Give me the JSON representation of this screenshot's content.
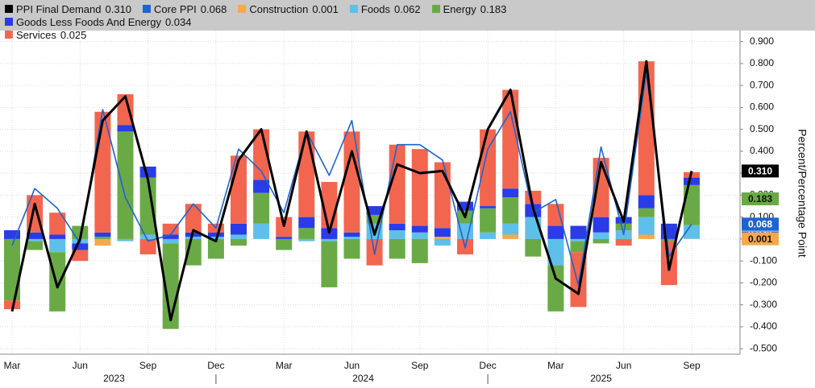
{
  "chart_data": {
    "type": "bar",
    "stacked": true,
    "categories": [
      "Mar",
      null,
      null,
      "Jun",
      null,
      null,
      "Sep",
      null,
      null,
      "Dec",
      null,
      null,
      "Mar",
      null,
      null,
      "Jun",
      null,
      null,
      "Sep",
      null,
      null,
      "Dec",
      null,
      null,
      "Mar",
      null,
      null,
      "Jun",
      null,
      null,
      "Sep"
    ],
    "year_groups": [
      {
        "label": "2023",
        "first": 0,
        "last": 9
      },
      {
        "label": "2024",
        "first": 10,
        "last": 21
      },
      {
        "label": "2025",
        "first": 22,
        "last": 30
      }
    ],
    "y_label": "Percent/Percentage Point",
    "ylim": [
      -0.525,
      0.95
    ],
    "yticks": [
      {
        "value": 0.9,
        "label": "0.900"
      },
      {
        "value": 0.8,
        "label": "0.800"
      },
      {
        "value": 0.7,
        "label": "0.700"
      },
      {
        "value": 0.6,
        "label": "0.600"
      },
      {
        "value": 0.5,
        "label": "0.500"
      },
      {
        "value": 0.4,
        "label": "0.400"
      },
      {
        "value": 0.3,
        "label": "0.300"
      },
      {
        "value": 0.2,
        "label": "0.200"
      },
      {
        "value": 0.1,
        "label": "0.100"
      },
      {
        "value": 0,
        "label": "0.000"
      },
      {
        "value": -0.1,
        "label": "-0.100"
      },
      {
        "value": -0.2,
        "label": "-0.200"
      },
      {
        "value": -0.3,
        "label": "-0.300"
      },
      {
        "value": -0.4,
        "label": "-0.400"
      },
      {
        "value": -0.5,
        "label": "-0.500"
      }
    ],
    "grid": true,
    "series": [
      {
        "name": "PPI Final Demand",
        "type": "line",
        "color": "#000000",
        "values": [
          -0.33,
          0.16,
          -0.22,
          0.0,
          0.54,
          0.65,
          0.27,
          -0.37,
          0.04,
          -0.01,
          0.36,
          0.5,
          0.06,
          0.49,
          0.03,
          0.4,
          0.02,
          0.34,
          0.3,
          0.31,
          0.1,
          0.5,
          0.68,
          0.14,
          -0.18,
          -0.25,
          0.35,
          0.08,
          0.81,
          -0.14,
          0.31
        ],
        "value_labels": [
          null,
          null,
          null,
          null,
          null,
          null,
          null,
          null,
          null,
          null,
          null,
          null,
          null,
          null,
          null,
          null,
          null,
          null,
          null,
          null,
          null,
          null,
          null,
          null,
          null,
          null,
          null,
          null,
          null,
          null,
          "0.310"
        ]
      },
      {
        "name": "Core PPI",
        "type": "line",
        "color": "#1f63d0",
        "values": [
          -0.03,
          0.23,
          0.14,
          -0.02,
          0.59,
          0.19,
          -0.01,
          0.02,
          0.16,
          0.05,
          0.41,
          0.31,
          0.12,
          0.49,
          0.29,
          0.54,
          -0.07,
          0.43,
          0.43,
          0.36,
          -0.04,
          0.41,
          0.58,
          0.12,
          0.18,
          -0.21,
          0.42,
          0.02,
          0.76,
          -0.08,
          0.068
        ],
        "value_labels": [
          null,
          null,
          null,
          null,
          null,
          null,
          null,
          null,
          null,
          null,
          null,
          null,
          null,
          null,
          null,
          null,
          null,
          null,
          null,
          null,
          null,
          null,
          null,
          null,
          null,
          null,
          null,
          null,
          null,
          null,
          "0.068"
        ]
      },
      {
        "name": "Construction",
        "type": "bar",
        "color": "#f5a94a",
        "values": [
          0,
          0,
          0,
          0,
          -0.03,
          0,
          0,
          0,
          0,
          0,
          0,
          0,
          0,
          0,
          0,
          0,
          0,
          0,
          0,
          0.01,
          0,
          0,
          0.02,
          0,
          0,
          0,
          0,
          0,
          0.02,
          0,
          0.001
        ],
        "value_labels": [
          null,
          null,
          null,
          null,
          null,
          null,
          null,
          null,
          null,
          null,
          null,
          null,
          null,
          null,
          null,
          null,
          null,
          null,
          null,
          null,
          null,
          null,
          null,
          null,
          null,
          null,
          null,
          null,
          null,
          null,
          "0.001"
        ]
      },
      {
        "name": "Foods",
        "type": "bar",
        "color": "#5ec0ea",
        "values": [
          0,
          -0.01,
          -0.06,
          -0.02,
          0,
          -0.01,
          0.02,
          -0.02,
          0.01,
          0.01,
          0.02,
          0.07,
          0,
          -0.01,
          -0.01,
          0.01,
          0.07,
          0.04,
          0.03,
          -0.03,
          0.07,
          0.03,
          0.05,
          0.1,
          -0.12,
          -0.01,
          0.03,
          0.04,
          0.08,
          0,
          0.062
        ],
        "value_labels": [
          null,
          null,
          null,
          null,
          null,
          null,
          null,
          null,
          null,
          null,
          null,
          null,
          null,
          null,
          null,
          null,
          null,
          null,
          null,
          null,
          null,
          null,
          null,
          null,
          null,
          null,
          null,
          null,
          null,
          null,
          "0.062"
        ]
      },
      {
        "name": "Energy",
        "type": "bar",
        "color": "#6aaa46",
        "values": [
          -0.28,
          -0.04,
          -0.27,
          0.06,
          0.01,
          0.49,
          0.26,
          -0.39,
          -0.12,
          -0.09,
          -0.03,
          0.14,
          -0.05,
          0.05,
          -0.21,
          -0.09,
          0.04,
          -0.09,
          -0.11,
          0,
          0.06,
          0.11,
          0.12,
          -0.08,
          -0.21,
          -0.05,
          -0.02,
          0.03,
          0.04,
          -0.01,
          0.183
        ],
        "value_labels": [
          null,
          null,
          null,
          null,
          null,
          null,
          null,
          null,
          null,
          null,
          null,
          null,
          null,
          null,
          null,
          null,
          null,
          null,
          null,
          null,
          null,
          null,
          null,
          null,
          null,
          null,
          null,
          null,
          null,
          null,
          "0.183"
        ]
      },
      {
        "name": "Goods Less Foods And Energy",
        "type": "bar",
        "color": "#2a3be8",
        "values": [
          0.04,
          0.03,
          0.02,
          -0.03,
          0.02,
          0.03,
          0.05,
          0.02,
          0.02,
          0.02,
          0.05,
          0.06,
          0.01,
          0.05,
          0.05,
          0.02,
          0.04,
          0.03,
          0.03,
          0.04,
          0.04,
          0.01,
          0.04,
          0.06,
          0.06,
          0.06,
          0.07,
          0.03,
          0.06,
          0.07,
          0.034
        ],
        "value_labels": [
          null,
          null,
          null,
          null,
          null,
          null,
          null,
          null,
          null,
          null,
          null,
          null,
          null,
          null,
          null,
          null,
          null,
          null,
          null,
          null,
          null,
          null,
          null,
          null,
          null,
          null,
          null,
          null,
          null,
          null,
          "0.034"
        ]
      },
      {
        "name": "Services",
        "type": "bar",
        "color": "#f2664f",
        "values": [
          -0.04,
          0.17,
          0.1,
          -0.05,
          0.55,
          0.14,
          -0.07,
          0.05,
          0.13,
          0.04,
          0.31,
          0.23,
          0.09,
          0.39,
          0.21,
          0.46,
          -0.12,
          0.36,
          0.35,
          0.3,
          -0.07,
          0.35,
          0.45,
          0.06,
          0.1,
          -0.25,
          0.27,
          -0.03,
          0.61,
          -0.2,
          0.025
        ],
        "value_labels": [
          null,
          null,
          null,
          null,
          null,
          null,
          null,
          null,
          null,
          null,
          null,
          null,
          null,
          null,
          null,
          null,
          null,
          null,
          null,
          null,
          null,
          null,
          null,
          null,
          null,
          null,
          null,
          null,
          null,
          null,
          "0.025"
        ]
      }
    ]
  }
}
